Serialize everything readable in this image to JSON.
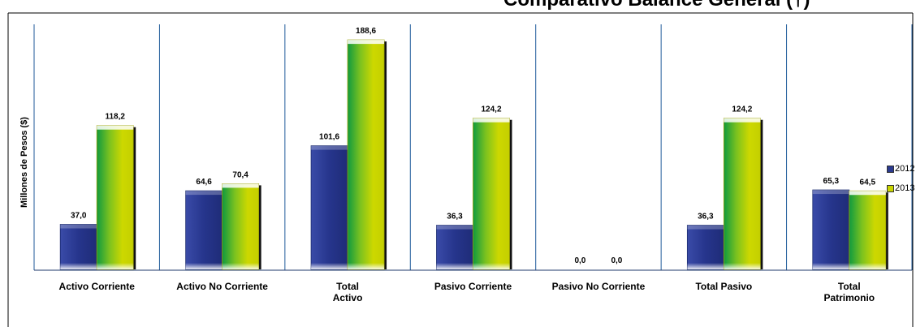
{
  "chart_data": {
    "type": "bar",
    "title": "Comparativo Balance General (†)",
    "xlabel": "",
    "ylabel": "Millones de Pesos ($)",
    "categories": [
      "Activo Corriente",
      "Activo No Corriente",
      "Total\nActivo",
      "Pasivo Corriente",
      "Pasivo No Corriente",
      "Total Pasivo",
      "Total\nPatrimonio"
    ],
    "series": [
      {
        "name": "2012",
        "values": [
          37.0,
          64.6,
          101.6,
          36.3,
          0.0,
          36.3,
          65.3
        ],
        "data_labels": [
          "37,0",
          "64,6",
          "101,6",
          "36,3",
          "0,0",
          "36,3",
          "65,3"
        ]
      },
      {
        "name": "2013",
        "values": [
          118.2,
          70.4,
          188.6,
          124.2,
          0.0,
          124.2,
          64.5
        ],
        "data_labels": [
          "118,2",
          "70,4",
          "188,6",
          "124,2",
          "0,0",
          "124,2",
          "64,5"
        ]
      }
    ],
    "ylim": [
      0,
      200
    ],
    "grid": "vertical-separators",
    "legend": "right",
    "colors": {
      "2012": "#2b3a8f",
      "2013": "#c8d400",
      "2013_gradient_start": "#1e9c3c"
    }
  }
}
